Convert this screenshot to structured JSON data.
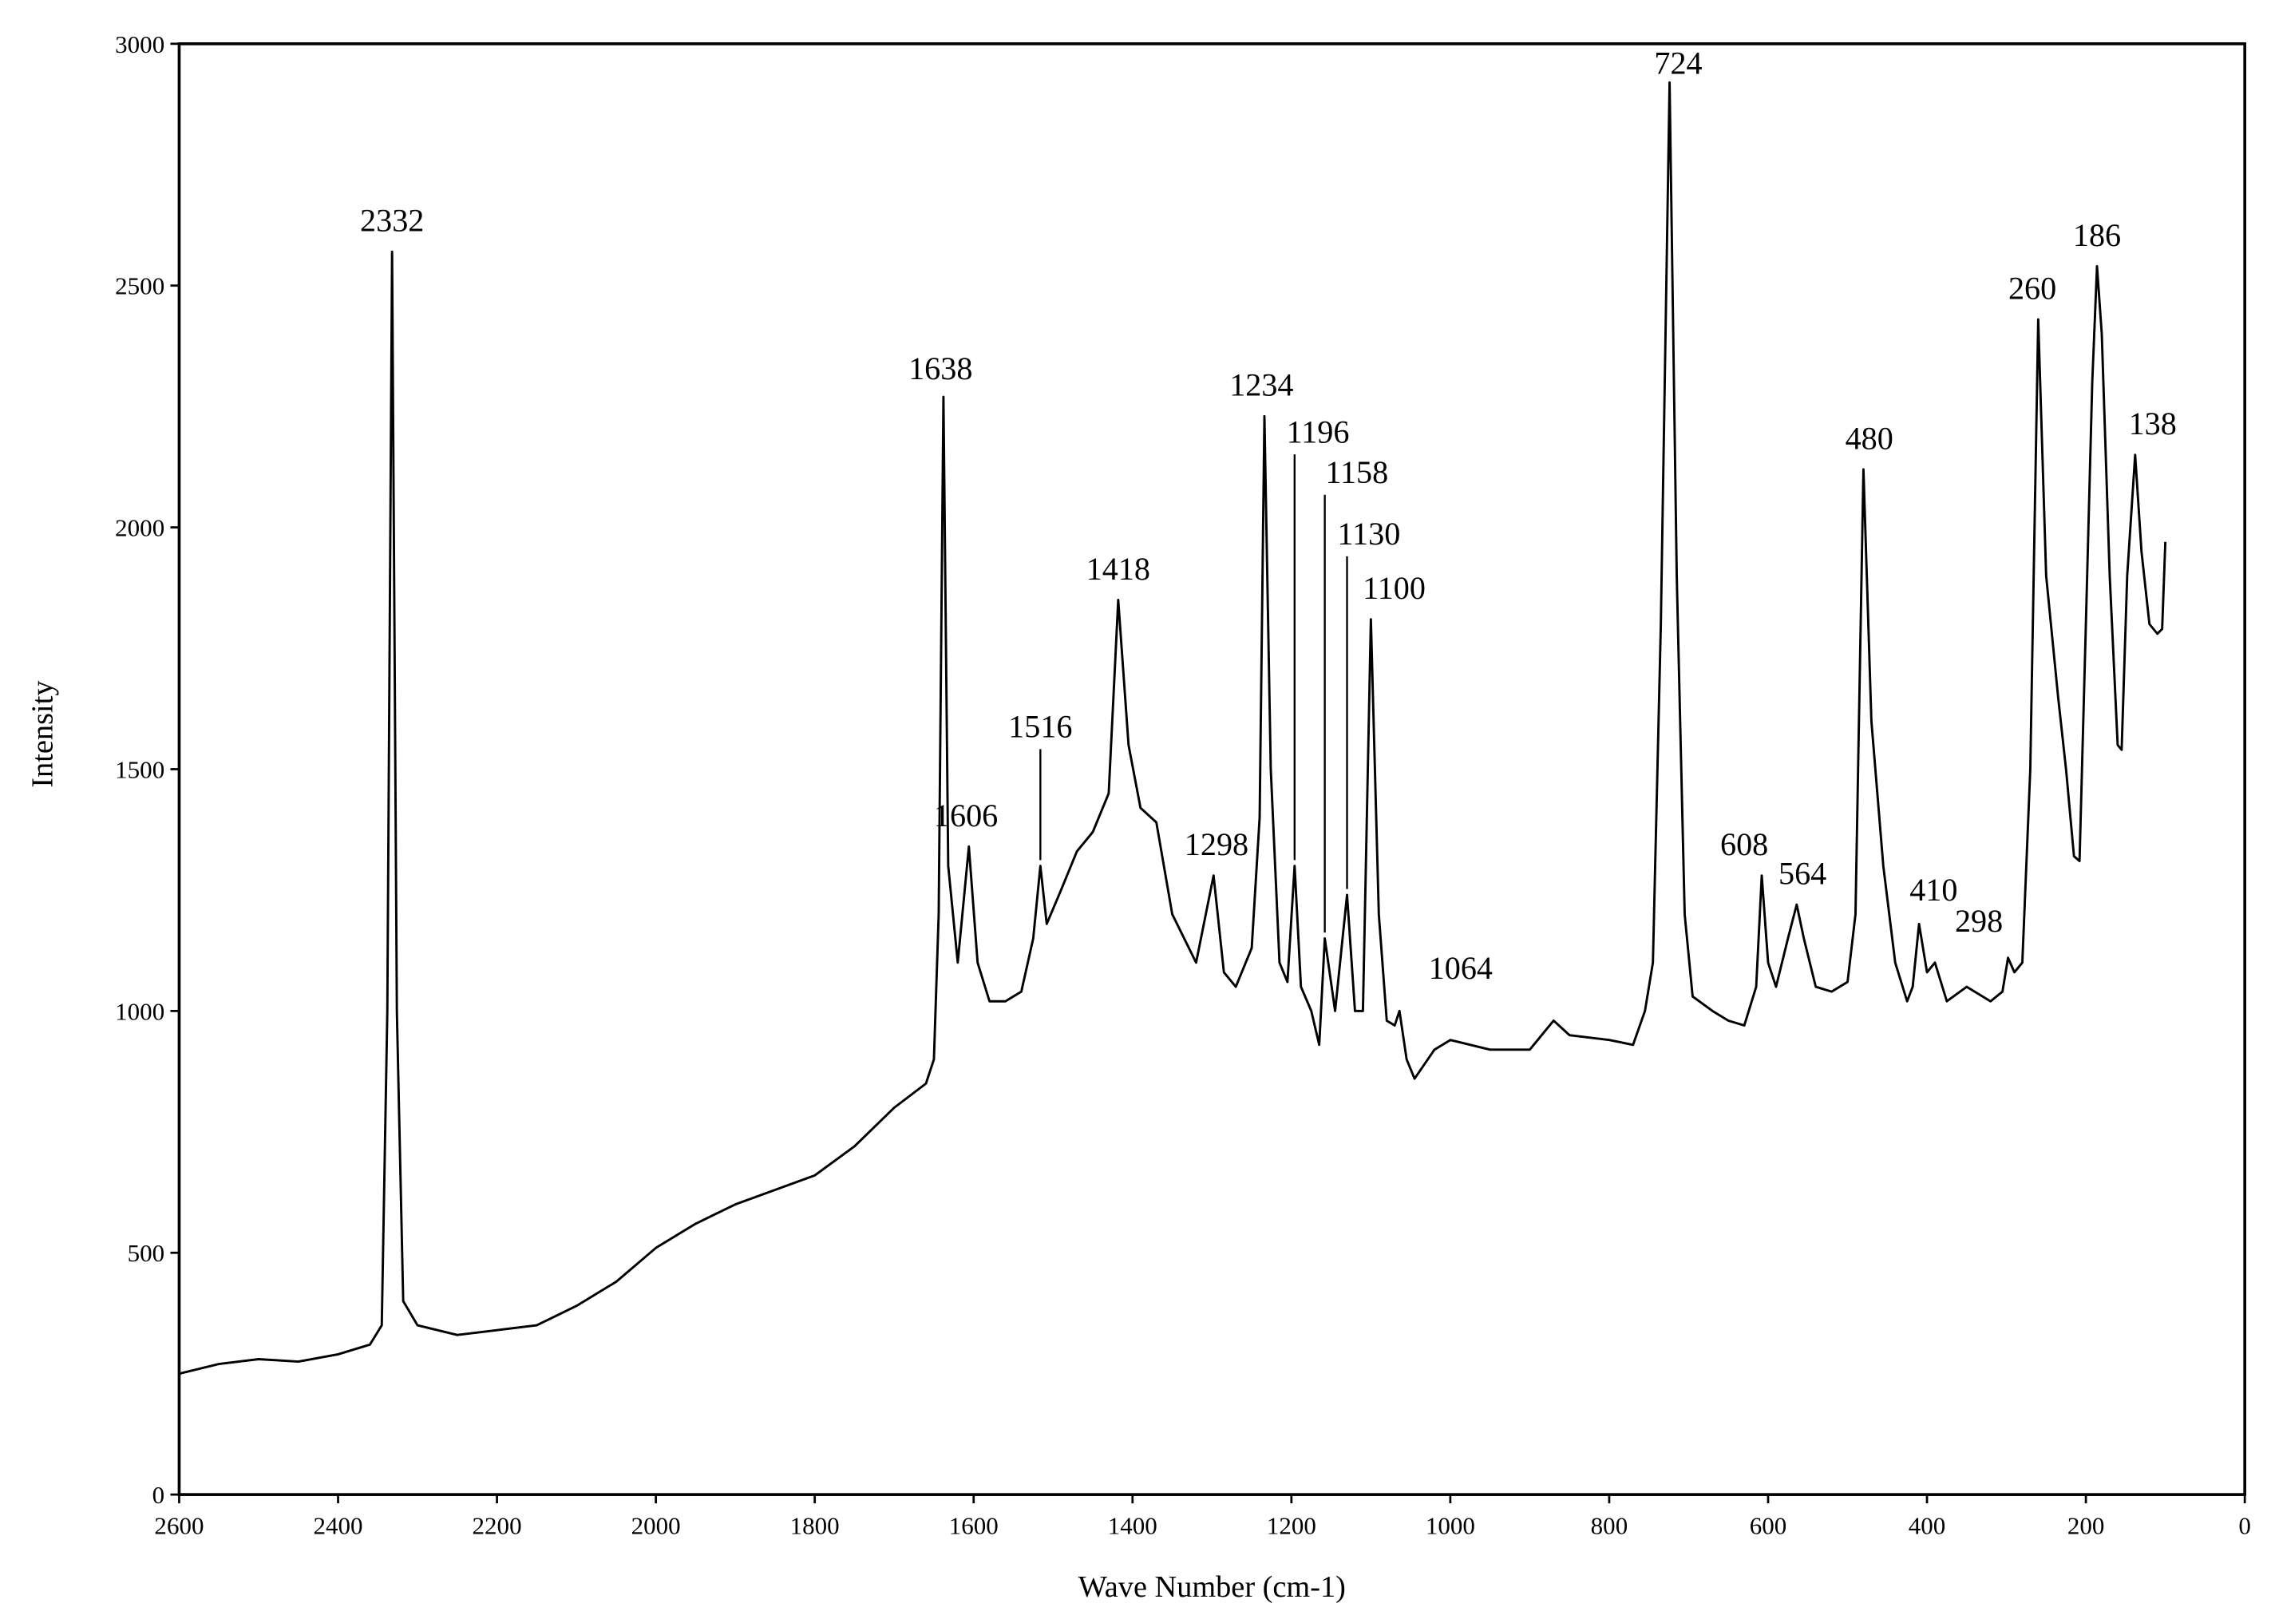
{
  "chart_data": {
    "type": "line",
    "xlabel": "Wave Number (cm-1)",
    "ylabel": "Intensity",
    "xlim": [
      2600,
      0
    ],
    "ylim": [
      0,
      3000
    ],
    "xticks": [
      2600,
      2400,
      2200,
      2000,
      1800,
      1600,
      1400,
      1200,
      1000,
      800,
      600,
      400,
      200,
      0
    ],
    "yticks": [
      0,
      500,
      1000,
      1500,
      2000,
      2500,
      3000
    ],
    "color": "#000000",
    "x": [
      2600,
      2550,
      2500,
      2450,
      2400,
      2360,
      2345,
      2338,
      2332,
      2326,
      2318,
      2300,
      2250,
      2200,
      2150,
      2100,
      2050,
      2000,
      1950,
      1900,
      1850,
      1800,
      1750,
      1700,
      1660,
      1650,
      1644,
      1638,
      1632,
      1620,
      1606,
      1595,
      1580,
      1560,
      1540,
      1525,
      1516,
      1508,
      1490,
      1470,
      1450,
      1430,
      1418,
      1405,
      1390,
      1370,
      1350,
      1320,
      1298,
      1285,
      1270,
      1250,
      1240,
      1234,
      1226,
      1215,
      1205,
      1196,
      1188,
      1175,
      1165,
      1158,
      1145,
      1130,
      1120,
      1110,
      1100,
      1090,
      1080,
      1070,
      1064,
      1055,
      1045,
      1020,
      1000,
      950,
      900,
      870,
      850,
      800,
      770,
      755,
      745,
      735,
      724,
      715,
      705,
      695,
      670,
      650,
      630,
      615,
      608,
      600,
      590,
      575,
      564,
      555,
      540,
      520,
      500,
      490,
      480,
      470,
      455,
      440,
      425,
      418,
      410,
      400,
      390,
      375,
      350,
      320,
      305,
      298,
      290,
      280,
      270,
      260,
      250,
      235,
      225,
      215,
      208,
      200,
      192,
      186,
      180,
      170,
      160,
      155,
      148,
      138,
      130,
      120,
      110,
      104,
      100
    ],
    "values": [
      250,
      270,
      280,
      275,
      290,
      310,
      350,
      1000,
      2570,
      1000,
      400,
      350,
      330,
      340,
      350,
      390,
      440,
      510,
      560,
      600,
      630,
      660,
      720,
      800,
      850,
      900,
      1200,
      2270,
      1300,
      1100,
      1340,
      1100,
      1020,
      1020,
      1040,
      1150,
      1300,
      1180,
      1250,
      1330,
      1370,
      1450,
      1850,
      1550,
      1420,
      1390,
      1200,
      1100,
      1280,
      1080,
      1050,
      1130,
      1400,
      2230,
      1500,
      1100,
      1060,
      1300,
      1050,
      1000,
      930,
      1150,
      1000,
      1240,
      1000,
      1000,
      1810,
      1200,
      980,
      970,
      1000,
      900,
      860,
      920,
      940,
      920,
      920,
      980,
      950,
      940,
      930,
      1000,
      1100,
      1800,
      2920,
      1900,
      1200,
      1030,
      1000,
      980,
      970,
      1050,
      1280,
      1100,
      1050,
      1150,
      1220,
      1150,
      1050,
      1040,
      1060,
      1200,
      2120,
      1600,
      1300,
      1100,
      1020,
      1050,
      1180,
      1080,
      1100,
      1020,
      1050,
      1020,
      1040,
      1110,
      1080,
      1100,
      1500,
      2430,
      1900,
      1650,
      1500,
      1320,
      1310,
      1800,
      2300,
      2540,
      2400,
      1900,
      1550,
      1540,
      1900,
      2150,
      1950,
      1800,
      1780,
      1790,
      1970
    ],
    "annotations": [
      {
        "x": 2332,
        "y": 2570
      },
      {
        "x": 1638,
        "y": 2270
      },
      {
        "x": 1606,
        "y": 1340
      },
      {
        "x": 1516,
        "y": 1300
      },
      {
        "x": 1418,
        "y": 1850
      },
      {
        "x": 1298,
        "y": 1280
      },
      {
        "x": 1234,
        "y": 2230
      },
      {
        "x": 1196,
        "y": 1300
      },
      {
        "x": 1158,
        "y": 1150
      },
      {
        "x": 1130,
        "y": 1240
      },
      {
        "x": 1100,
        "y": 1810
      },
      {
        "x": 1064,
        "y": 1000
      },
      {
        "x": 724,
        "y": 2920
      },
      {
        "x": 608,
        "y": 1280
      },
      {
        "x": 564,
        "y": 1220
      },
      {
        "x": 480,
        "y": 2120
      },
      {
        "x": 410,
        "y": 1180
      },
      {
        "x": 298,
        "y": 1110
      },
      {
        "x": 260,
        "y": 2430
      },
      {
        "x": 186,
        "y": 2540
      },
      {
        "x": 138,
        "y": 2150
      }
    ]
  }
}
